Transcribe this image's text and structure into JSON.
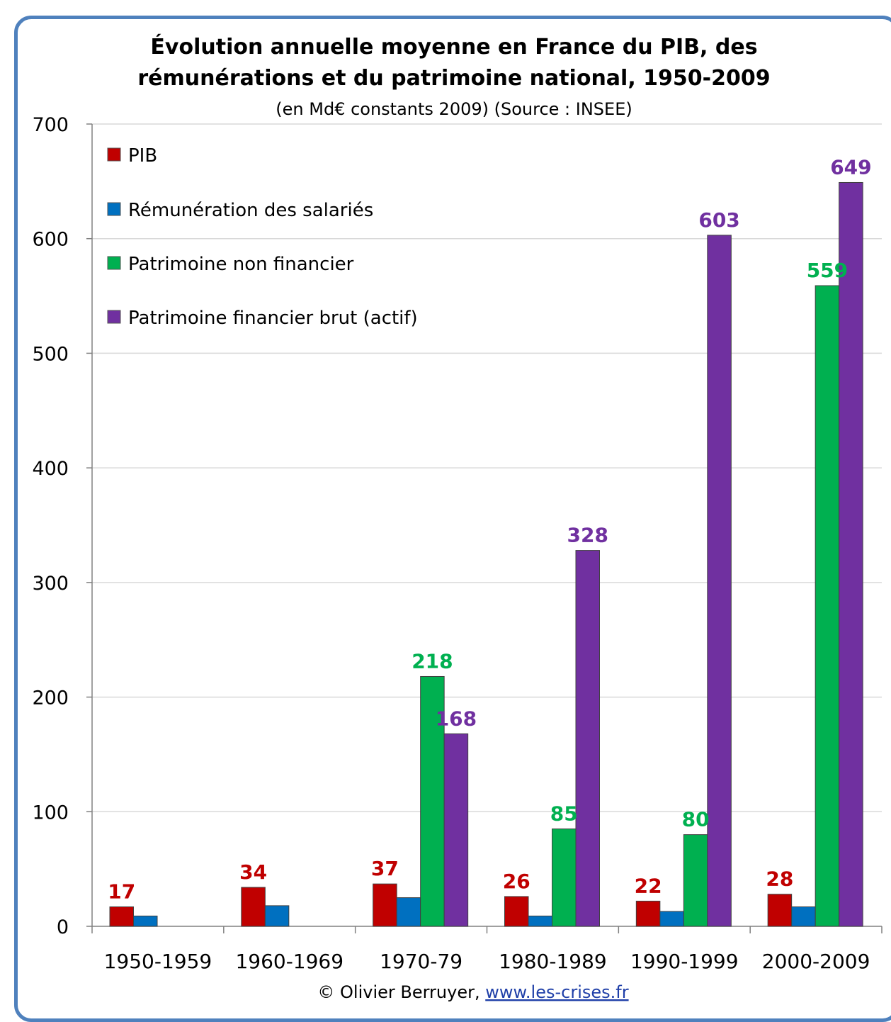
{
  "chart_data": {
    "type": "bar",
    "title_lines": [
      "Évolution annuelle moyenne en France du PIB, des",
      "rémunérations et du patrimoine national, 1950-2009"
    ],
    "subtitle": "(en Md€ constants 2009) (Source : INSEE)",
    "categories": [
      "1950-1959",
      "1960-1969",
      "1970-79",
      "1980-1989",
      "1990-1999",
      "2000-2009"
    ],
    "ylim": [
      0,
      700
    ],
    "yticks": [
      0,
      100,
      200,
      300,
      400,
      500,
      600,
      700
    ],
    "grid": true,
    "legend_position": "top-left",
    "series": [
      {
        "name": "PIB",
        "color": "#c00000",
        "values": [
          17,
          34,
          37,
          26,
          22,
          28
        ],
        "labels_shown": [
          true,
          true,
          true,
          true,
          true,
          true
        ]
      },
      {
        "name": "Rémunération des salariés",
        "color": "#0070c0",
        "values": [
          9,
          18,
          25,
          9,
          13,
          17
        ],
        "labels_shown": [
          false,
          false,
          false,
          false,
          false,
          false
        ]
      },
      {
        "name": "Patrimoine non financier",
        "color": "#00b050",
        "values": [
          null,
          null,
          218,
          85,
          80,
          559
        ],
        "labels_shown": [
          false,
          false,
          true,
          true,
          true,
          true
        ]
      },
      {
        "name": "Patrimoine financier brut (actif)",
        "color": "#7030a0",
        "values": [
          null,
          null,
          168,
          328,
          603,
          649
        ],
        "labels_shown": [
          false,
          false,
          true,
          true,
          true,
          true
        ]
      }
    ]
  },
  "footer": {
    "credit_prefix": "© Olivier Berruyer, ",
    "credit_link": "www.les-crises.fr"
  }
}
